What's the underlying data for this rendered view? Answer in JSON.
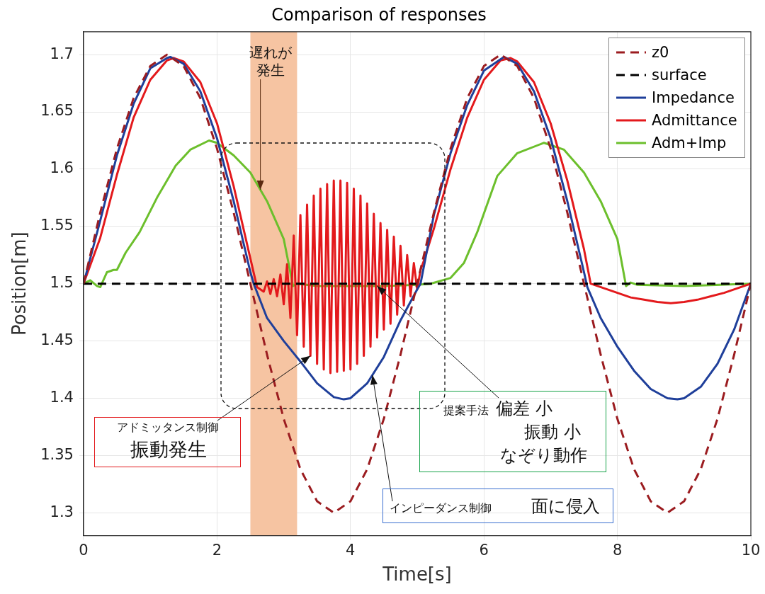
{
  "chart_data": {
    "type": "line",
    "title": "Comparison of responses",
    "xlabel": "Time[s]",
    "ylabel": "Position[m]",
    "xlim": [
      0,
      10
    ],
    "ylim": [
      1.28,
      1.72
    ],
    "xticks": [
      0,
      2,
      4,
      6,
      8,
      10
    ],
    "yticks": [
      1.3,
      1.35,
      1.4,
      1.45,
      1.5,
      1.55,
      1.6,
      1.65,
      1.7
    ],
    "grid": true,
    "legend": "top right",
    "marker": "none",
    "bands": [
      {
        "axis": "x",
        "from": 2.5,
        "to": 3.2,
        "color": "#f6c4a2"
      }
    ],
    "annotations": [
      {
        "text": "遅れが発生",
        "x": 2.65,
        "y": 1.582
      },
      {
        "text": "アドミッタンス制御",
        "x": 3.4,
        "y": 1.437
      },
      "振動発生",
      "提案手法",
      {
        "text": "偏差 小",
        "x": 4.4,
        "y": 1.498
      },
      "振動 小",
      "なぞり動作",
      {
        "text": "インピーダンス制御",
        "x": 4.33,
        "y": 1.42
      },
      "面に侵入"
    ],
    "series": [
      {
        "name": "z0",
        "color": "#9b1c20",
        "line_style": "dashed",
        "x": [
          0,
          0.25,
          0.5,
          0.75,
          1,
          1.25,
          1.5,
          1.75,
          2,
          2.25,
          2.5,
          2.75,
          3,
          3.25,
          3.5,
          3.75,
          4,
          4.25,
          4.5,
          4.75,
          5,
          5.25,
          5.5,
          5.75,
          6,
          6.25,
          6.5,
          6.75,
          7,
          7.25,
          7.5,
          7.75,
          8,
          8.25,
          8.5,
          8.75,
          9,
          9.25,
          9.5,
          9.75,
          10
        ],
        "values": [
          1.5,
          1.562,
          1.618,
          1.662,
          1.69,
          1.7,
          1.69,
          1.662,
          1.618,
          1.562,
          1.5,
          1.438,
          1.382,
          1.338,
          1.31,
          1.3,
          1.31,
          1.338,
          1.382,
          1.438,
          1.5,
          1.562,
          1.618,
          1.662,
          1.69,
          1.7,
          1.69,
          1.662,
          1.618,
          1.562,
          1.5,
          1.438,
          1.382,
          1.338,
          1.31,
          1.3,
          1.31,
          1.338,
          1.382,
          1.438,
          1.5
        ]
      },
      {
        "name": "surface",
        "color": "#000000",
        "line_style": "dashed",
        "x": [
          0,
          10
        ],
        "values": [
          1.5,
          1.5
        ]
      },
      {
        "name": "Impedance",
        "color": "#1f3f9a",
        "line_style": "solid",
        "x": [
          0,
          0.25,
          0.5,
          0.75,
          1,
          1.25,
          1.3,
          1.5,
          1.75,
          2,
          2.25,
          2.5,
          2.55,
          2.75,
          3,
          3.25,
          3.5,
          3.75,
          3.9,
          4,
          4.25,
          4.5,
          4.75,
          5,
          5.05,
          5.25,
          5.5,
          5.75,
          6,
          6.3,
          6.5,
          6.75,
          7,
          7.25,
          7.5,
          7.55,
          7.75,
          8,
          8.25,
          8.5,
          8.75,
          8.9,
          9,
          9.25,
          9.5,
          9.75,
          10
        ],
        "values": [
          1.5,
          1.555,
          1.612,
          1.657,
          1.688,
          1.697,
          1.698,
          1.692,
          1.668,
          1.627,
          1.572,
          1.51,
          1.5,
          1.47,
          1.45,
          1.432,
          1.413,
          1.401,
          1.399,
          1.4,
          1.413,
          1.436,
          1.468,
          1.495,
          1.5,
          1.56,
          1.614,
          1.656,
          1.686,
          1.698,
          1.692,
          1.668,
          1.627,
          1.572,
          1.51,
          1.497,
          1.47,
          1.445,
          1.424,
          1.408,
          1.4,
          1.399,
          1.4,
          1.41,
          1.43,
          1.46,
          1.5
        ]
      },
      {
        "name": "Admittance",
        "color": "#e3191c",
        "line_style": "solid",
        "x": [
          0,
          0.25,
          0.5,
          0.75,
          1,
          1.25,
          1.35,
          1.5,
          1.75,
          2,
          2.25,
          2.5,
          2.6,
          2.65,
          2.7,
          2.75,
          2.8,
          2.85,
          2.9,
          2.95,
          3,
          3.05,
          3.1,
          3.15,
          3.2,
          3.25,
          3.3,
          3.35,
          3.4,
          3.45,
          3.5,
          3.55,
          3.6,
          3.65,
          3.7,
          3.75,
          3.8,
          3.85,
          3.9,
          3.95,
          4,
          4.05,
          4.1,
          4.15,
          4.2,
          4.25,
          4.3,
          4.35,
          4.4,
          4.45,
          4.5,
          4.55,
          4.6,
          4.65,
          4.7,
          4.75,
          4.8,
          4.85,
          4.9,
          4.95,
          5,
          5.05,
          5.1,
          5.25,
          5.5,
          5.75,
          6,
          6.25,
          6.4,
          6.5,
          6.75,
          7,
          7.25,
          7.5,
          7.6,
          7.8,
          8,
          8.2,
          8.4,
          8.6,
          8.8,
          9,
          9.2,
          9.4,
          9.6,
          9.8,
          10
        ],
        "values": [
          1.5,
          1.54,
          1.595,
          1.645,
          1.678,
          1.695,
          1.697,
          1.694,
          1.676,
          1.64,
          1.585,
          1.522,
          1.497,
          1.495,
          1.493,
          1.502,
          1.491,
          1.504,
          1.489,
          1.508,
          1.482,
          1.517,
          1.47,
          1.542,
          1.455,
          1.56,
          1.445,
          1.569,
          1.437,
          1.577,
          1.43,
          1.583,
          1.425,
          1.587,
          1.422,
          1.59,
          1.423,
          1.59,
          1.424,
          1.588,
          1.425,
          1.583,
          1.43,
          1.577,
          1.437,
          1.57,
          1.445,
          1.561,
          1.453,
          1.553,
          1.46,
          1.547,
          1.465,
          1.541,
          1.473,
          1.533,
          1.481,
          1.525,
          1.489,
          1.518,
          1.495,
          1.512,
          1.52,
          1.548,
          1.6,
          1.645,
          1.678,
          1.695,
          1.697,
          1.694,
          1.676,
          1.64,
          1.59,
          1.53,
          1.5,
          1.496,
          1.492,
          1.488,
          1.486,
          1.484,
          1.483,
          1.484,
          1.486,
          1.489,
          1.492,
          1.496,
          1.5
        ]
      },
      {
        "name": "Adm+Imp",
        "color": "#6cbf2c",
        "line_style": "solid",
        "x": [
          0,
          0.1,
          0.2,
          0.25,
          0.35,
          0.45,
          0.5,
          0.63,
          0.84,
          1.1,
          1.38,
          1.6,
          1.88,
          2,
          2.25,
          2.5,
          2.75,
          3,
          3.14,
          3.2,
          3.5,
          4,
          4.5,
          5,
          5.2,
          5.5,
          5.7,
          5.9,
          6.2,
          6.5,
          6.9,
          7.2,
          7.5,
          7.75,
          8,
          8.13,
          8.2,
          8.3,
          9,
          10
        ],
        "values": [
          1.5,
          1.503,
          1.498,
          1.497,
          1.51,
          1.512,
          1.512,
          1.527,
          1.545,
          1.575,
          1.603,
          1.617,
          1.625,
          1.623,
          1.612,
          1.597,
          1.572,
          1.539,
          1.498,
          1.5,
          1.498,
          1.498,
          1.498,
          1.499,
          1.5,
          1.505,
          1.518,
          1.545,
          1.594,
          1.614,
          1.623,
          1.617,
          1.597,
          1.572,
          1.539,
          1.498,
          1.501,
          1.499,
          1.498,
          1.5
        ]
      }
    ]
  }
}
